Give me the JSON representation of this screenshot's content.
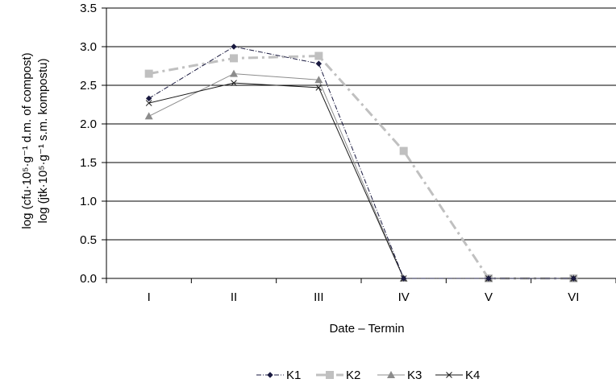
{
  "chart_data": {
    "type": "line",
    "categories": [
      "I",
      "II",
      "III",
      "IV",
      "V",
      "VI"
    ],
    "xlabel": "Date – Termin",
    "ylabel": {
      "line1": "log (cfu·10⁵·g⁻¹ d.m. of compost)",
      "line2": "log (jtk·10⁵·g⁻¹ s.m. kompostu)"
    },
    "ylim": [
      0,
      3.5
    ],
    "yticks": [
      "0.0",
      "0.5",
      "1.0",
      "1.5",
      "2.0",
      "2.5",
      "3.0",
      "3.5"
    ],
    "grid": "horizontal",
    "legend_position": "bottom",
    "series": [
      {
        "name": "K1",
        "values": [
          2.33,
          3.0,
          2.78,
          0,
          0,
          0
        ],
        "color": "#1a1a40",
        "dash": "dash-dot",
        "marker": "diamond"
      },
      {
        "name": "K2",
        "values": [
          2.65,
          2.85,
          2.88,
          1.65,
          0,
          0
        ],
        "color": "#c0c0c0",
        "dash": "dash-dot-thick",
        "marker": "square"
      },
      {
        "name": "K3",
        "values": [
          2.1,
          2.65,
          2.57,
          0,
          0,
          0
        ],
        "color": "#8c8c8c",
        "dash": "solid",
        "marker": "triangle"
      },
      {
        "name": "K4",
        "values": [
          2.27,
          2.53,
          2.47,
          0,
          0,
          0
        ],
        "color": "#1a1a1a",
        "dash": "solid",
        "marker": "x"
      }
    ]
  }
}
